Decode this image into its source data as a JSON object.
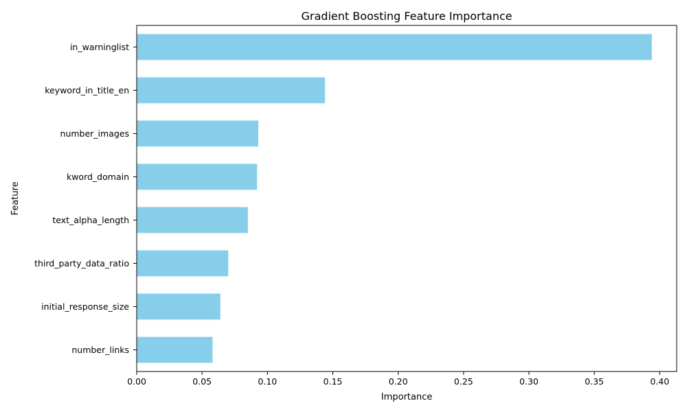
{
  "chart_data": {
    "type": "bar",
    "orientation": "horizontal",
    "title": "Gradient Boosting Feature Importance",
    "xlabel": "Importance",
    "ylabel": "Feature",
    "categories": [
      "in_warninglist",
      "keyword_in_title_en",
      "number_images",
      "kword_domain",
      "text_alpha_length",
      "third_party_data_ratio",
      "initial_response_size",
      "number_links"
    ],
    "values": [
      0.394,
      0.144,
      0.093,
      0.092,
      0.085,
      0.07,
      0.064,
      0.058
    ],
    "xlim": [
      0.0,
      0.413
    ],
    "xticks": [
      0.0,
      0.05,
      0.1,
      0.15,
      0.2,
      0.25,
      0.3,
      0.35,
      0.4
    ],
    "xtick_labels": [
      "0.00",
      "0.05",
      "0.10",
      "0.15",
      "0.20",
      "0.25",
      "0.30",
      "0.35",
      "0.40"
    ],
    "bar_color": "#87ceeb",
    "grid": false,
    "legend": "none"
  }
}
